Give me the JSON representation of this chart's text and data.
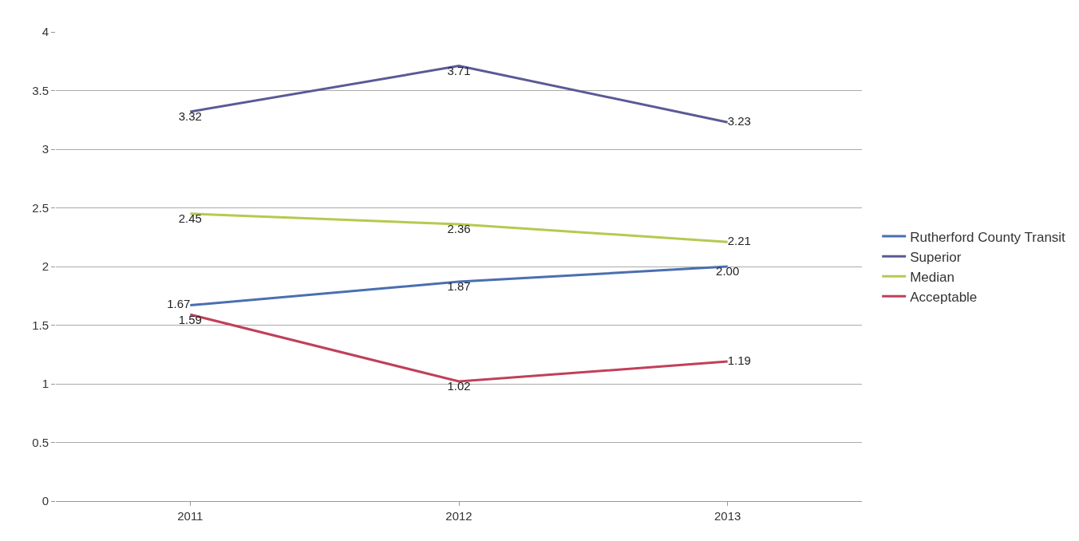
{
  "chart_data": {
    "type": "line",
    "categories": [
      "2011",
      "2012",
      "2013"
    ],
    "series": [
      {
        "name": "Rutherford County Transit",
        "color": "#4a6fb0",
        "values": [
          1.67,
          1.87,
          2.0
        ],
        "value_labels": [
          "1.67",
          "1.87",
          "2.00"
        ]
      },
      {
        "name": "Superior",
        "color": "#5a5a96",
        "values": [
          3.32,
          3.71,
          3.23
        ],
        "value_labels": [
          "3.32",
          "3.71",
          "3.23"
        ]
      },
      {
        "name": "Median",
        "color": "#b8c850",
        "values": [
          2.45,
          2.36,
          2.21
        ],
        "value_labels": [
          "2.45",
          "2.36",
          "2.21"
        ]
      },
      {
        "name": "Acceptable",
        "color": "#c0405a",
        "values": [
          1.59,
          1.02,
          1.19
        ],
        "value_labels": [
          "1.59",
          "1.02",
          "1.19"
        ]
      }
    ],
    "ylim": [
      0,
      4
    ],
    "yticks": [
      0,
      0.5,
      1,
      1.5,
      2,
      2.5,
      3,
      3.5,
      4
    ],
    "grid": "y",
    "legend": "right",
    "marker": "none",
    "line_style": "solid"
  }
}
